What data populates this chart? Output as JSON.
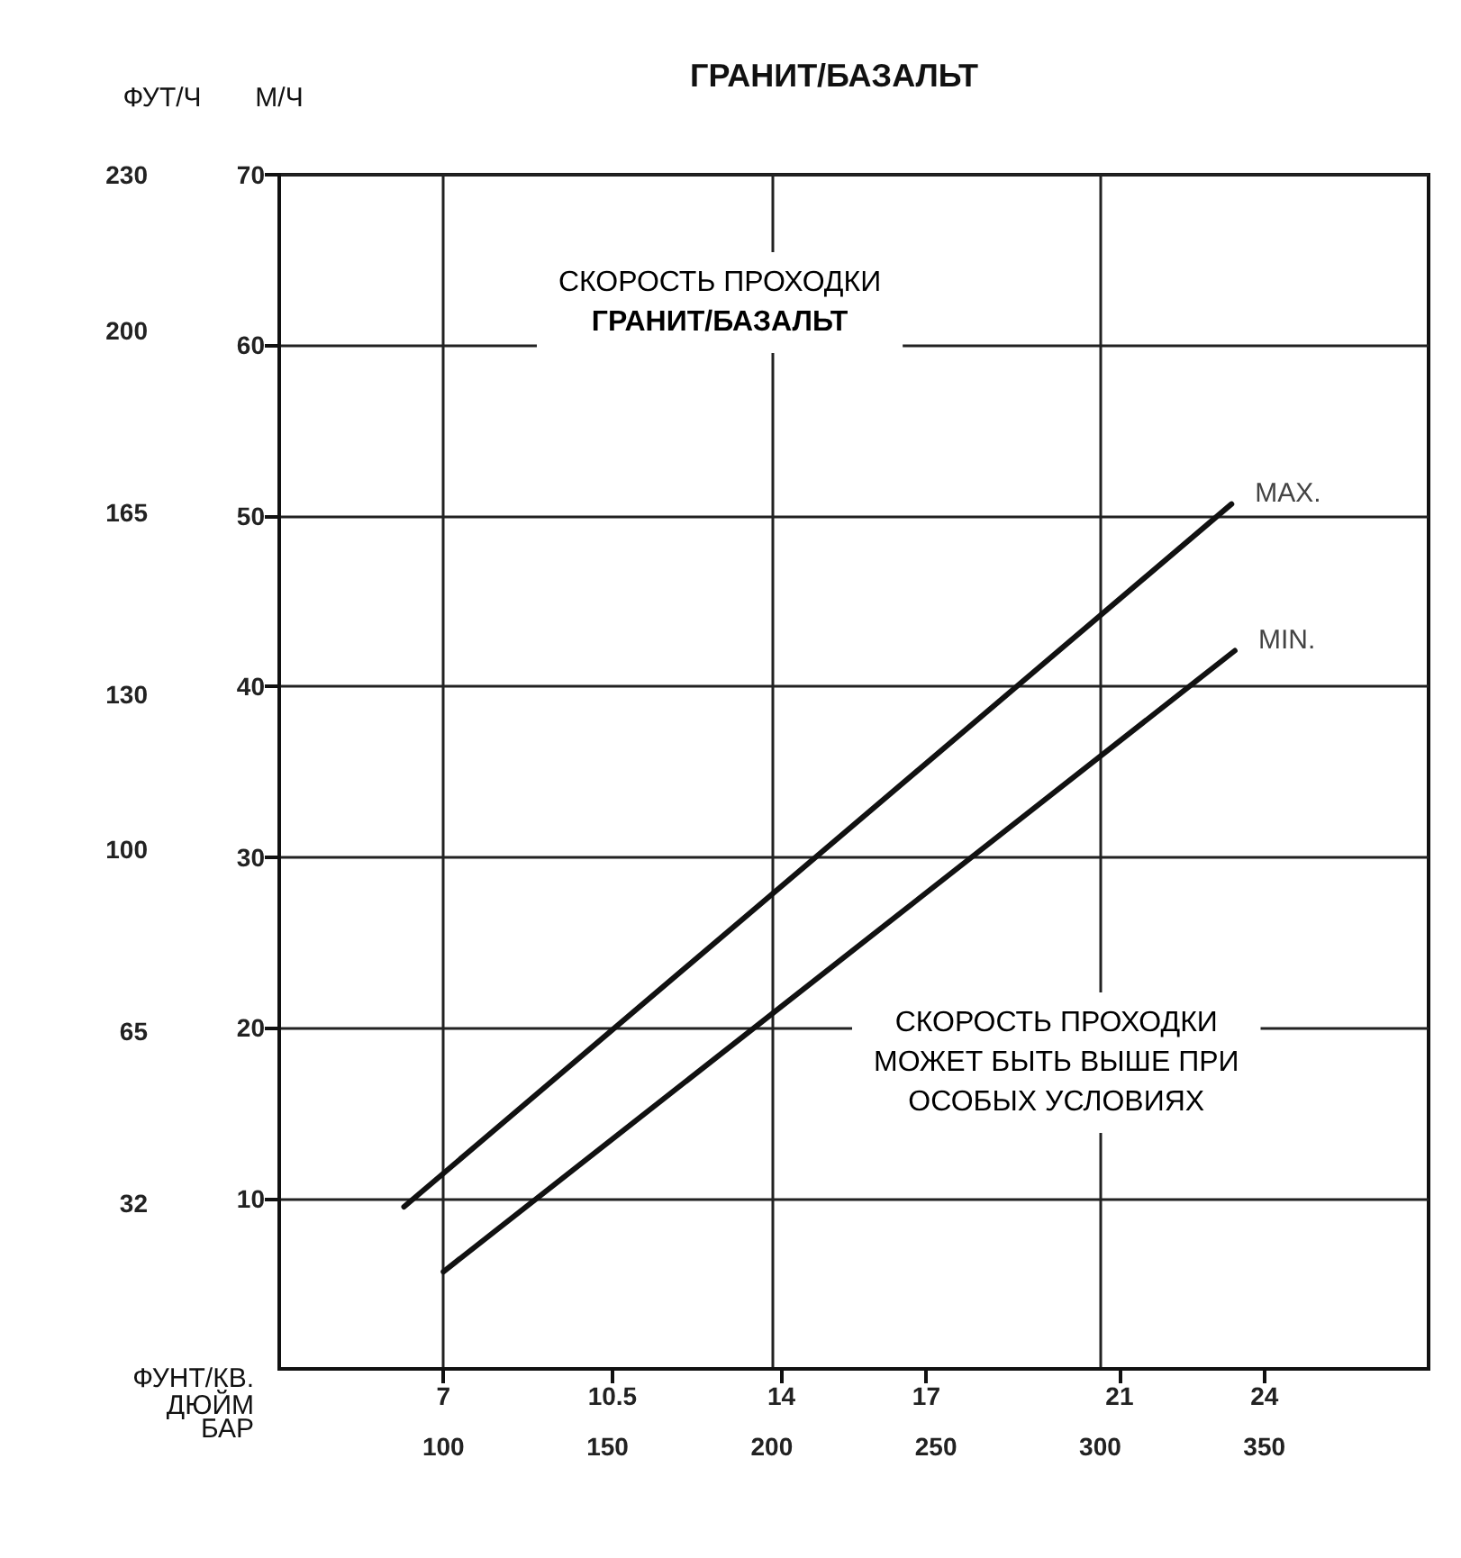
{
  "chart_data": {
    "type": "line",
    "title": "ГРАНИТ/БАЗАЛЬТ",
    "xlabel": "ФУНТ/КВ.\nДЮЙМ",
    "x2label": "БАР",
    "ylabel": "М/Ч",
    "y2label": "ФУТ/Ч",
    "xlim": [
      50,
      400
    ],
    "xticks": [
      100,
      150,
      200,
      250,
      300,
      350
    ],
    "x2lim": [
      3.6,
      27.4
    ],
    "x2ticks": [
      7,
      10.5,
      14,
      17,
      21,
      24
    ],
    "ylim": [
      0,
      70
    ],
    "yticks": [
      10,
      20,
      30,
      40,
      50,
      60,
      70
    ],
    "y2lim": [
      0,
      230
    ],
    "y2ticks": [
      32,
      65,
      100,
      130,
      165,
      200,
      230
    ],
    "series": [
      {
        "name": "MAX.",
        "color": "#111111",
        "x": [
          88,
          340
        ],
        "values": [
          9.5,
          50.7
        ]
      },
      {
        "name": "MIN.",
        "color": "#111111",
        "x": [
          100,
          341
        ],
        "values": [
          5.7,
          42.1
        ]
      }
    ],
    "annotations": [
      "СКОРОСТЬ ПРОХОДКИ\nГРАНИТ/БАЗАЛЬТ",
      "СКОРОСТЬ ПРОХОДКИ\nМОЖЕТ БЫТЬ ВЫШЕ ПРИ\nОСОБЫХ УСЛОВИЯХ"
    ],
    "grid": true,
    "marker": "none",
    "line_style": "solid"
  }
}
